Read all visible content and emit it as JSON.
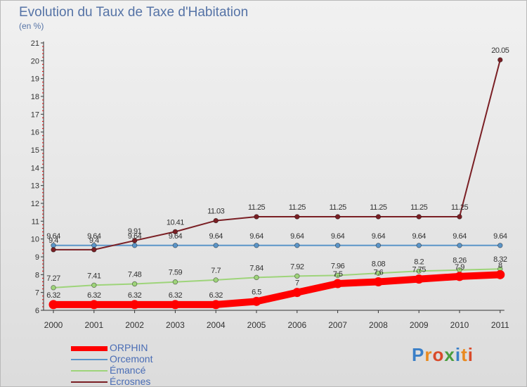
{
  "header": {
    "title": "Evolution du Taux de Taxe d'Habitation",
    "unit": "(en %)"
  },
  "brand": {
    "logo_text": "Proxiti",
    "colors": [
      "#3a7fc7",
      "#e98a1f",
      "#d94a2a",
      "#4a9d3e",
      "#3a7fc7",
      "#e98a1f",
      "#d94a2a"
    ]
  },
  "chart_data": {
    "type": "line",
    "title": "Evolution du Taux de Taxe d'Habitation",
    "ylabel": "(en %)",
    "xlabel": "",
    "ylim": [
      6,
      21
    ],
    "yticks": [
      "6",
      "7",
      "8",
      "9",
      "10",
      "11",
      "12",
      "13",
      "14",
      "15",
      "16",
      "17",
      "18",
      "19",
      "20",
      "21"
    ],
    "categories": [
      "2000",
      "2001",
      "2002",
      "2003",
      "2004",
      "2005",
      "2006",
      "2007",
      "2008",
      "2009",
      "2010",
      "2011"
    ],
    "grid": false,
    "legend_position": "bottom-left",
    "series": [
      {
        "name": "ORPHIN",
        "color": "#ff0000",
        "values": [
          6.32,
          6.32,
          6.32,
          6.32,
          6.32,
          6.5,
          7,
          7.5,
          7.6,
          7.75,
          7.9,
          8
        ],
        "labels": [
          "6.32",
          "6.32",
          "6.32",
          "6.32",
          "6.32",
          "6.5",
          "7",
          "7.5",
          "7.6",
          "7.75",
          "7.9",
          "8"
        ]
      },
      {
        "name": "Orcemont",
        "color": "#5b95c8",
        "values": [
          9.64,
          9.64,
          9.64,
          9.64,
          9.64,
          9.64,
          9.64,
          9.64,
          9.64,
          9.64,
          9.64,
          9.64
        ],
        "labels": [
          "9.64",
          "9.64",
          "9.64",
          "9.64",
          "9.64",
          "9.64",
          "9.64",
          "9.64",
          "9.64",
          "9.64",
          "9.64",
          "9.64"
        ]
      },
      {
        "name": "Émancé",
        "color": "#9ed47a",
        "values": [
          7.27,
          7.41,
          7.48,
          7.59,
          7.7,
          7.84,
          7.92,
          7.96,
          8.08,
          8.2,
          8.26,
          8.32
        ],
        "labels": [
          "7.27",
          "7.41",
          "7.48",
          "7.59",
          "7.7",
          "7.84",
          "7.92",
          "7.96",
          "8.08",
          "8.2",
          "8.26",
          "8.32"
        ]
      },
      {
        "name": "Écrosnes",
        "color": "#7a1f24",
        "values": [
          9.4,
          9.4,
          9.91,
          10.41,
          11.03,
          11.25,
          11.25,
          11.25,
          11.25,
          11.25,
          11.25,
          20.05
        ],
        "labels": [
          "9.4",
          "9.4",
          "9.91",
          "10.41",
          "11.03",
          "11.25",
          "11.25",
          "11.25",
          "11.25",
          "11.25",
          "11.25",
          "20.05"
        ]
      }
    ]
  }
}
